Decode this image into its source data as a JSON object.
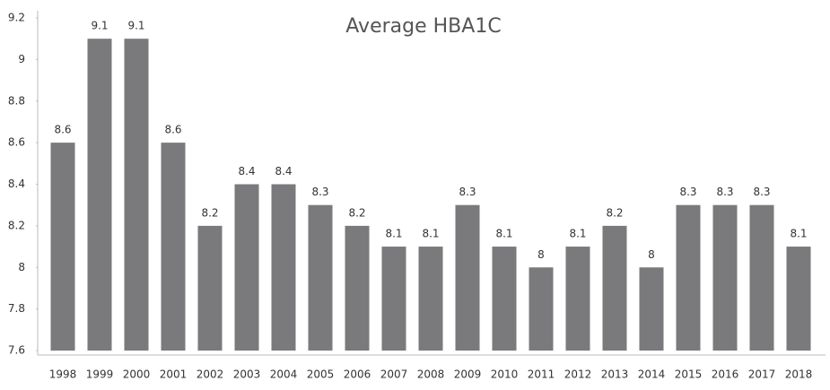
{
  "chart_data": {
    "type": "bar",
    "title": "Average HBA1C",
    "categories": [
      "1998",
      "1999",
      "2000",
      "2001",
      "2002",
      "2003",
      "2004",
      "2005",
      "2006",
      "2007",
      "2008",
      "2009",
      "2010",
      "2011",
      "2012",
      "2013",
      "2014",
      "2015",
      "2016",
      "2017",
      "2018"
    ],
    "values": [
      8.6,
      9.1,
      9.1,
      8.6,
      8.2,
      8.4,
      8.4,
      8.3,
      8.2,
      8.1,
      8.1,
      8.3,
      8.1,
      8,
      8.1,
      8.2,
      8,
      8.3,
      8.3,
      8.3,
      8.1
    ],
    "color": "#7a7a7d",
    "ylim": [
      7.6,
      9.2
    ],
    "yticks": [
      7.6,
      7.8,
      8,
      8.2,
      8.4,
      8.6,
      8.8,
      9,
      9.2
    ],
    "grid": false
  }
}
